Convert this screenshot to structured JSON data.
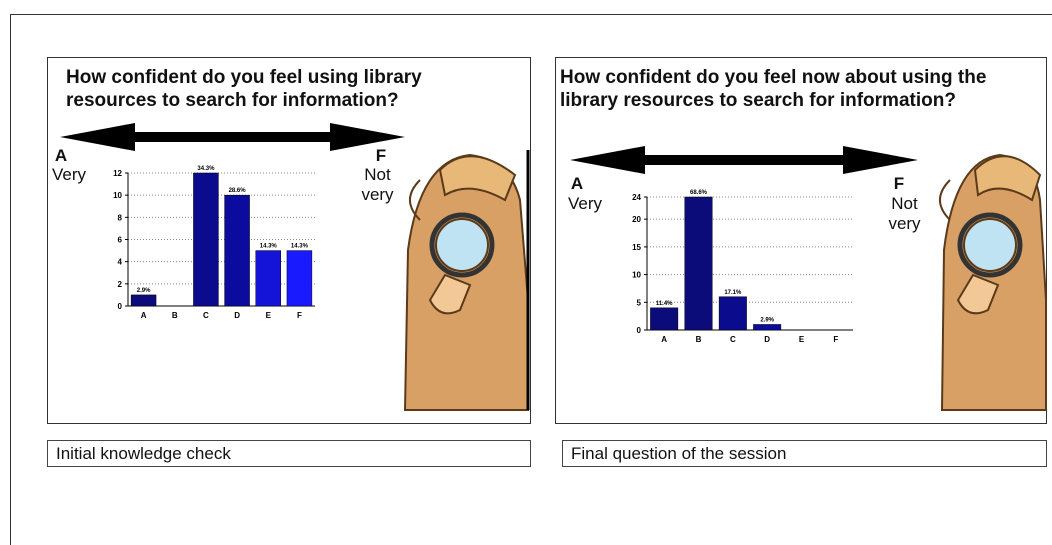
{
  "chart_data": [
    {
      "type": "bar",
      "title": "How confident do you feel using library resources to search for information?",
      "annotations": [
        "A",
        "Very",
        "F",
        "Not very"
      ],
      "categories": [
        "A",
        "B",
        "C",
        "D",
        "E",
        "F"
      ],
      "values": [
        1,
        0,
        12,
        10,
        5,
        5
      ],
      "value_labels": [
        "2.9%",
        null,
        "34.3%",
        "28.6%",
        "14.3%",
        "14.3%"
      ],
      "colors": [
        "#0b0b7a",
        "#0b0b7a",
        "#0b0b8e",
        "#0b0b9e",
        "#1414d8",
        "#1a1aff"
      ],
      "ylim": [
        0,
        12
      ],
      "yticks": [
        0,
        2,
        4,
        6,
        8,
        10,
        12
      ],
      "grid": true,
      "caption": "Initial knowledge check"
    },
    {
      "type": "bar",
      "title": "How confident do you feel now about using the library resources to search for information?",
      "annotations": [
        "A",
        "Very",
        "F",
        "Not very"
      ],
      "categories": [
        "A",
        "B",
        "C",
        "D",
        "E",
        "F"
      ],
      "values": [
        4,
        24,
        6,
        1,
        0,
        0
      ],
      "value_labels": [
        "11.4%",
        "68.6%",
        "17.1%",
        "2.9%",
        null,
        null
      ],
      "colors": [
        "#0b0b7a",
        "#0b0b7a",
        "#0b0b8e",
        "#0b0b9e",
        "#1414d8",
        "#1a1aff"
      ],
      "ylim": [
        0,
        24
      ],
      "yticks": [
        0,
        5,
        10,
        15,
        20,
        24
      ],
      "grid": true,
      "caption": "Final question of the session"
    }
  ]
}
